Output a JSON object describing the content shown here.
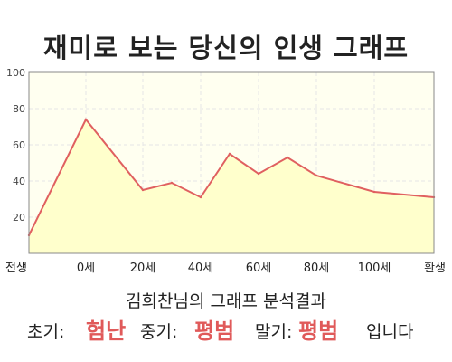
{
  "title": "재미로 보는 당신의 인생 그래프",
  "chart_data": {
    "type": "area",
    "x_tick_labels": [
      "전생",
      "0세",
      "20세",
      "40세",
      "60세",
      "80세",
      "100세",
      "환생"
    ],
    "y_ticks": [
      20,
      40,
      60,
      80,
      100
    ],
    "ylim": [
      0,
      100
    ],
    "grid": true,
    "series": [
      {
        "x": [
          "전생",
          "0세",
          "20세",
          "30세",
          "40세",
          "50세",
          "60세",
          "70세",
          "80세",
          "100세",
          "환생"
        ],
        "values": [
          10,
          74,
          35,
          39,
          31,
          55,
          44,
          53,
          43,
          34,
          31
        ]
      }
    ],
    "colors": {
      "line": "#e06060",
      "fill": "#ffffcc",
      "plot_bg": "#fffff0",
      "grid": "#e6e6e6"
    }
  },
  "subtitle": "김희찬님의 그래프 분석결과",
  "summary": {
    "early_label": "초기:",
    "early_value": "험난",
    "mid_label": "중기:",
    "mid_value": "평범",
    "late_label": "말기:",
    "late_value": "평범",
    "ending": "입니다"
  }
}
